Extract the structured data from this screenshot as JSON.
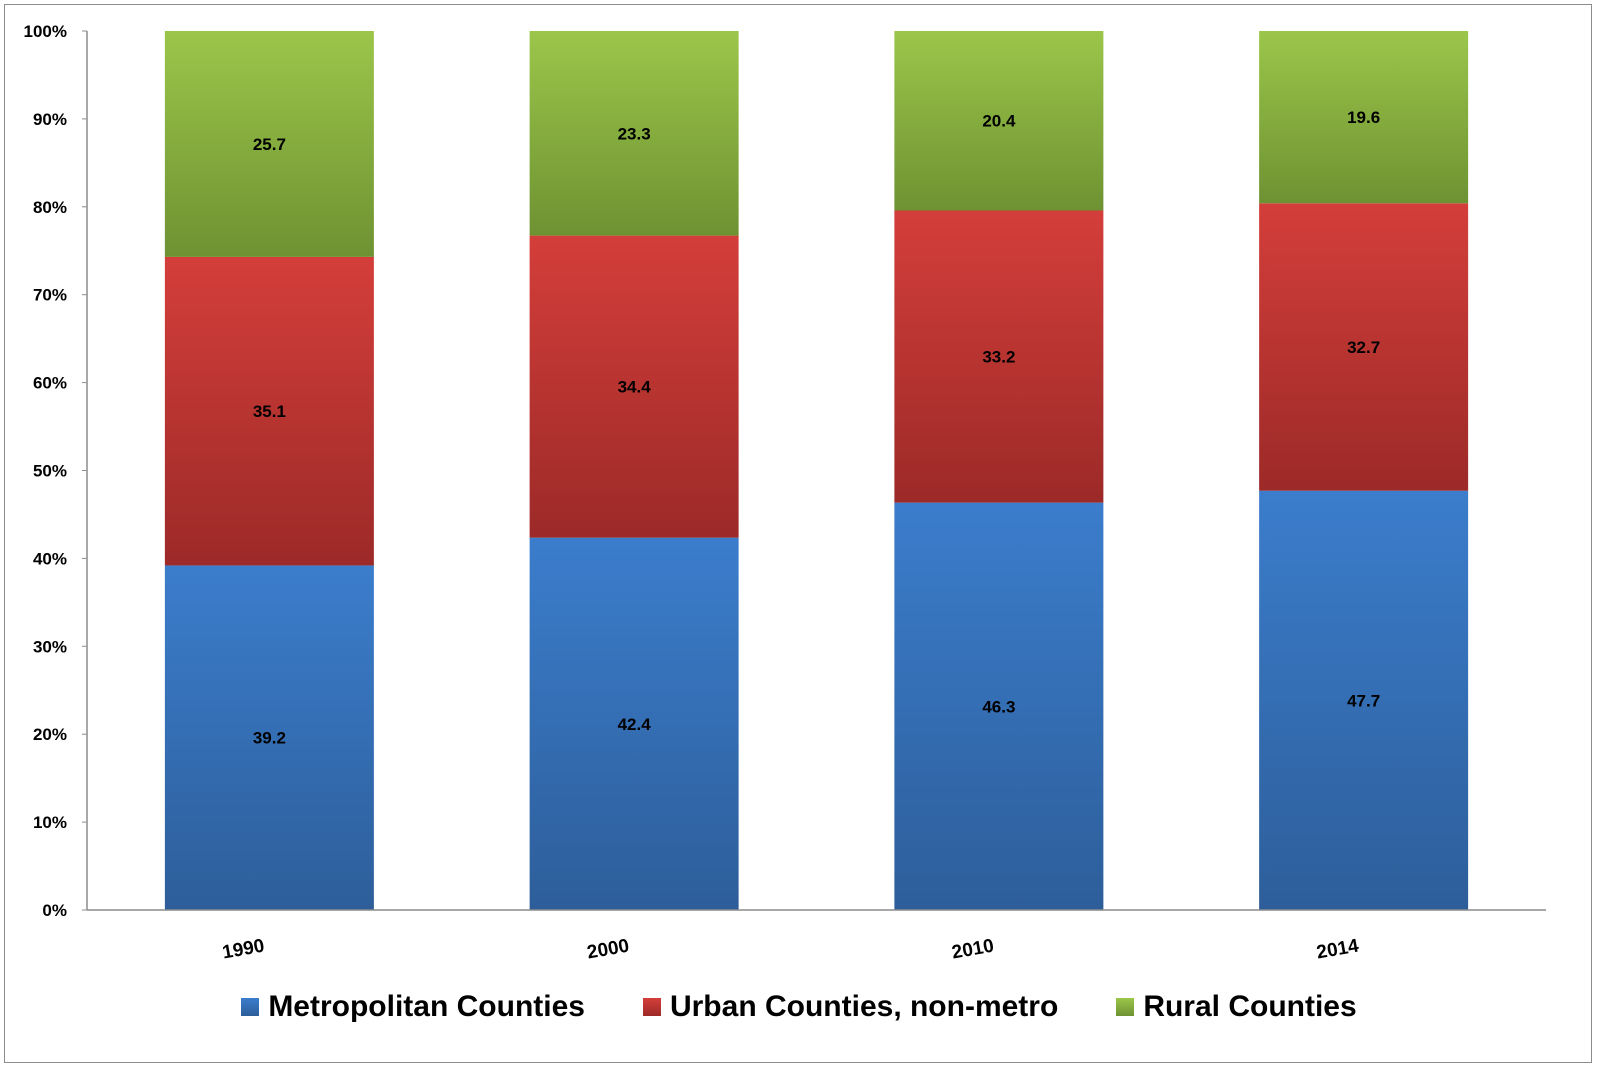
{
  "chart_data": {
    "type": "bar",
    "stacked": "percent",
    "categories": [
      "1990",
      "2000",
      "2010",
      "2014"
    ],
    "series": [
      {
        "name": "Metropolitan Counties",
        "values": [
          39.2,
          42.4,
          46.3,
          47.7
        ],
        "color": "#3b7dcc",
        "color_dark": "#2d5e9a"
      },
      {
        "name": "Urban Counties, non-metro",
        "values": [
          35.1,
          34.4,
          33.2,
          32.7
        ],
        "color": "#d43e3a",
        "color_dark": "#9c2a28"
      },
      {
        "name": "Rural Counties",
        "values": [
          25.7,
          23.3,
          20.4,
          19.6
        ],
        "color": "#9bc64a",
        "color_dark": "#6e9232"
      }
    ],
    "yticks": [
      "0%",
      "10%",
      "20%",
      "30%",
      "40%",
      "50%",
      "60%",
      "70%",
      "80%",
      "90%",
      "100%"
    ],
    "ylim": [
      0,
      100
    ],
    "grid": false,
    "legend": "bottom",
    "title": "",
    "xlabel": "",
    "ylabel": ""
  }
}
